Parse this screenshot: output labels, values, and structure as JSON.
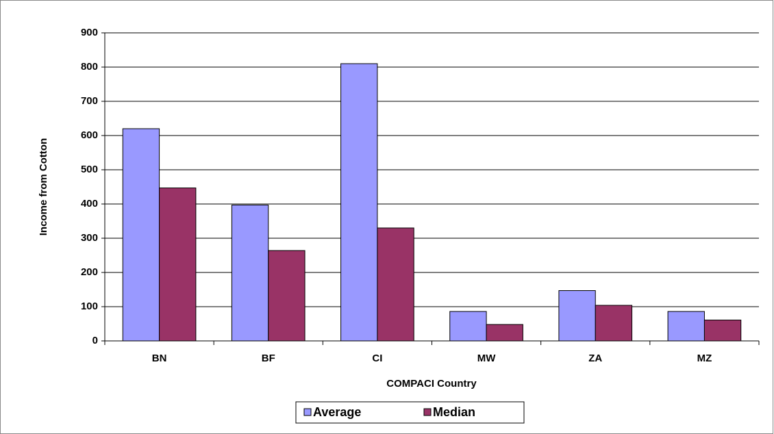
{
  "chart_data": {
    "type": "bar",
    "x_label": "COMPACI Country",
    "y_label": "Income from Cotton",
    "categories": [
      "BN",
      "BF",
      "CI",
      "MW",
      "ZA",
      "MZ"
    ],
    "series": [
      {
        "name": "Average",
        "color": "#9999ff",
        "values": [
          620,
          397,
          810,
          86,
          147,
          86
        ]
      },
      {
        "name": "Median",
        "color": "#993366",
        "values": [
          447,
          264,
          330,
          48,
          104,
          61
        ]
      }
    ],
    "ylim": [
      0,
      900
    ],
    "yticks": [
      0,
      100,
      200,
      300,
      400,
      500,
      600,
      700,
      800,
      900
    ],
    "grid": true,
    "legend": "bottom"
  }
}
